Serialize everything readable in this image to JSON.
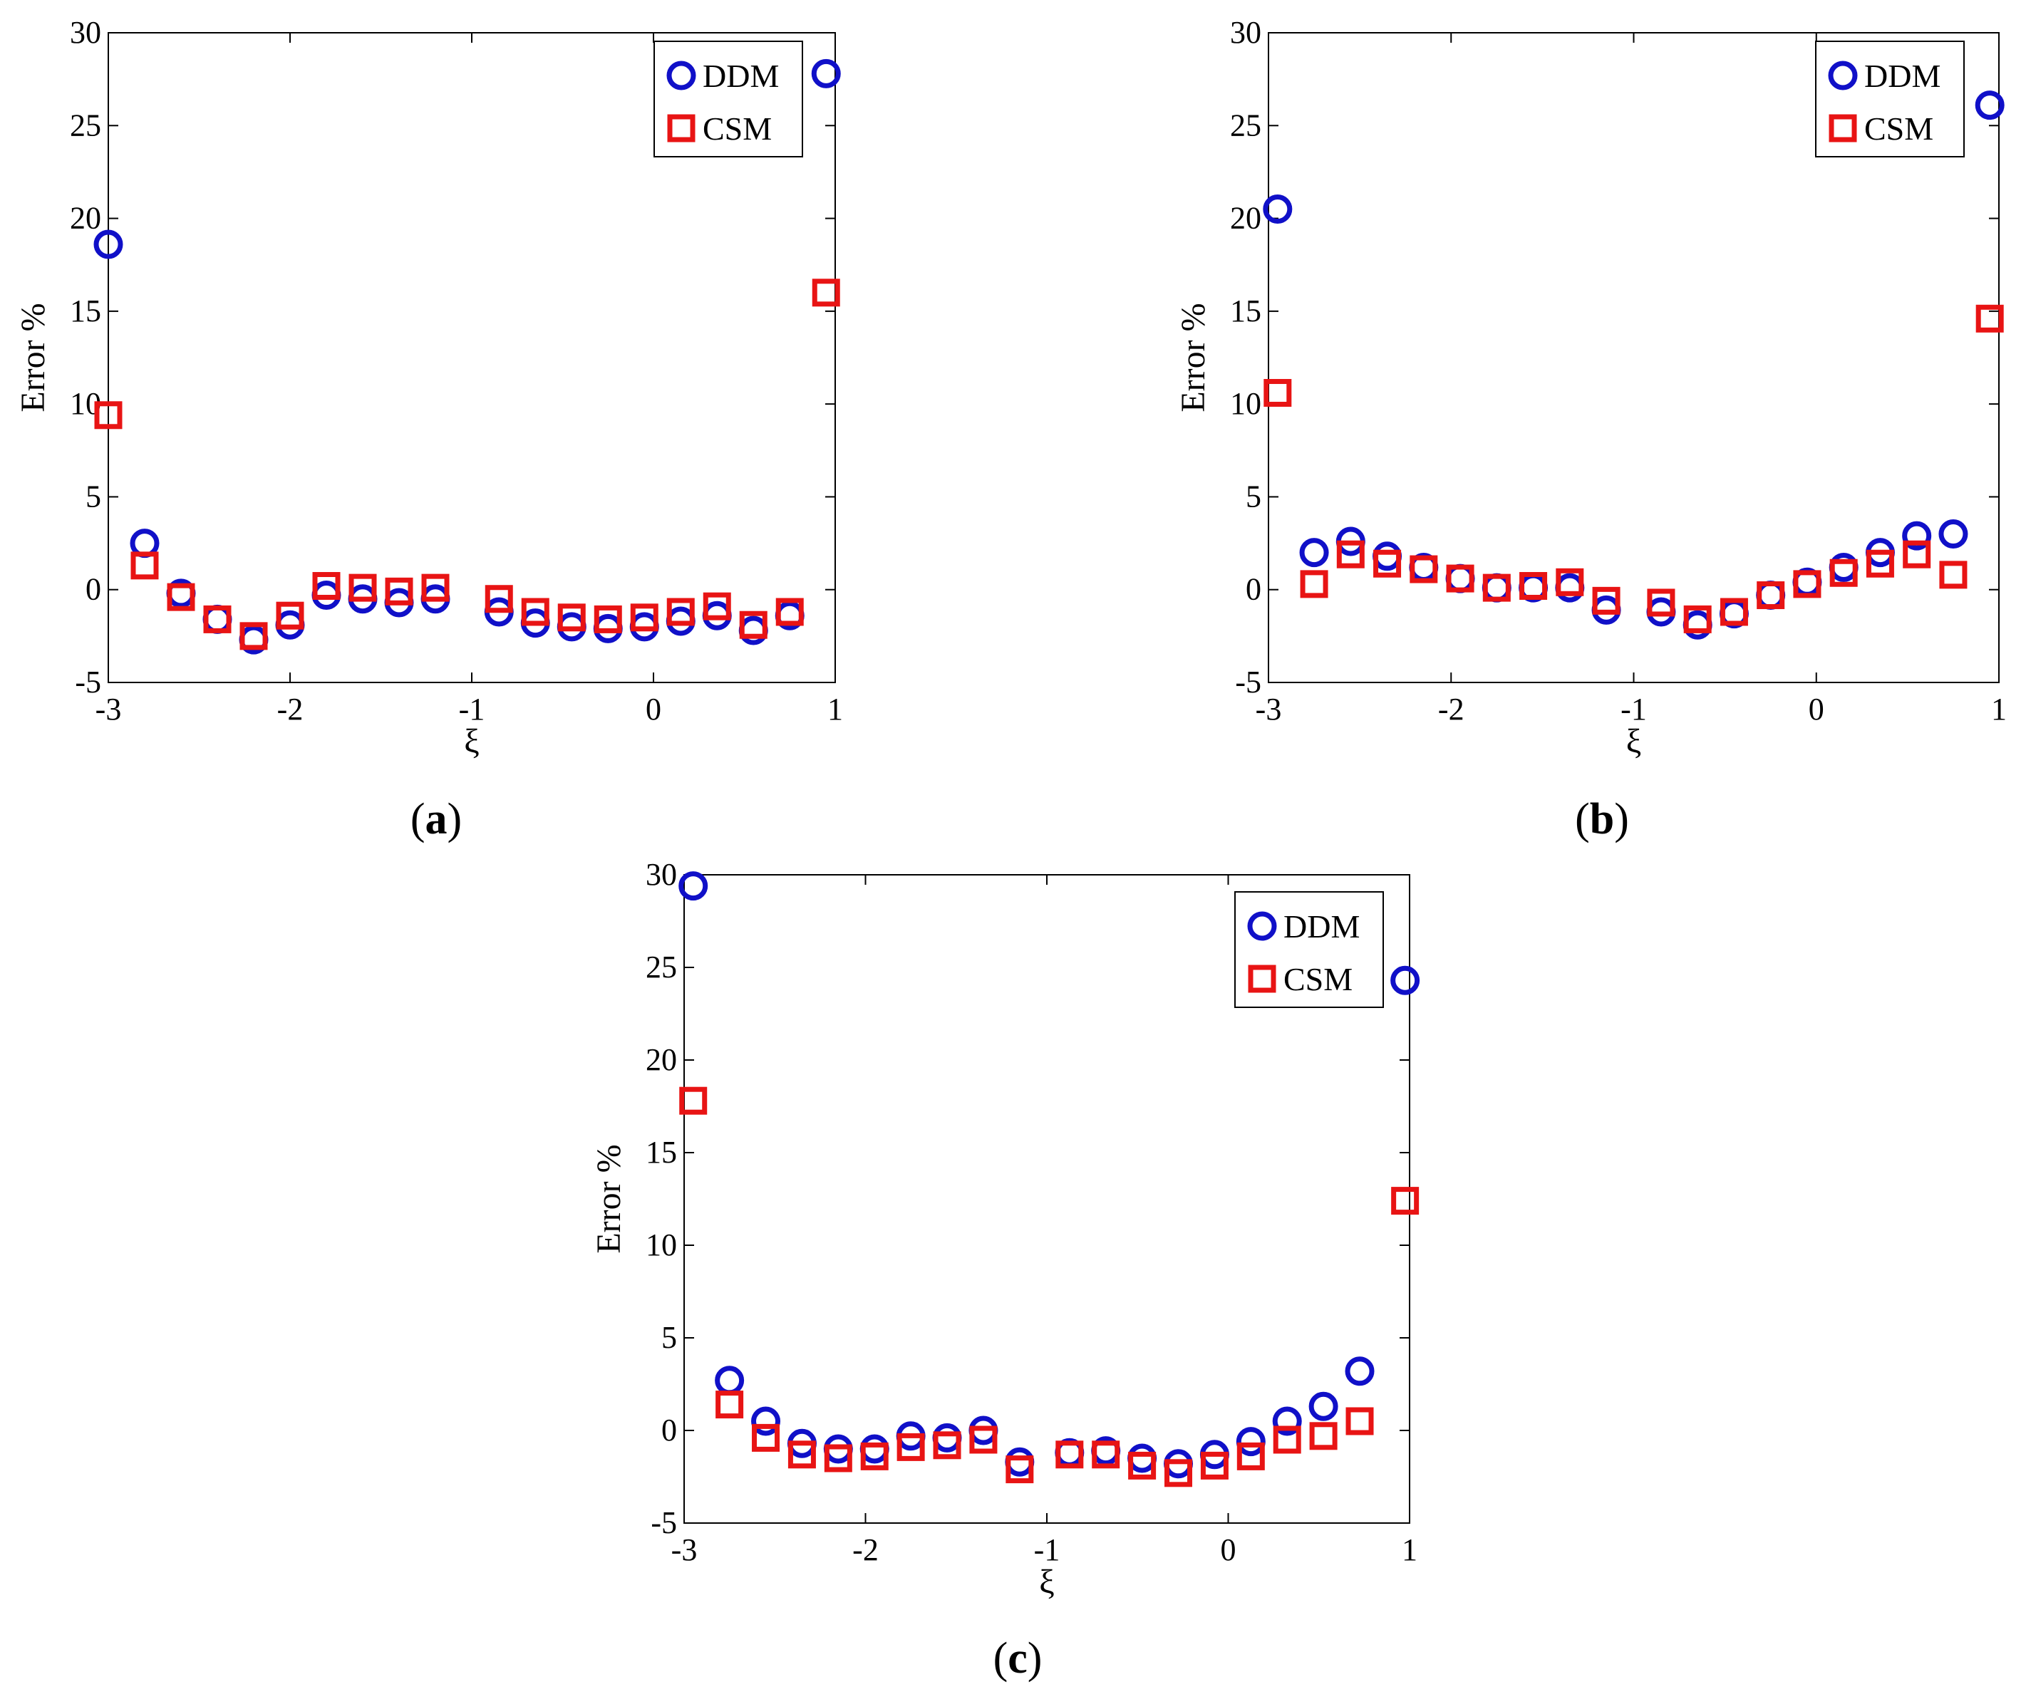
{
  "colors": {
    "DDM": "#1010c8",
    "CSM": "#e81414"
  },
  "chart_data": [
    {
      "type": "scatter",
      "label": "a",
      "xlabel": "ξ",
      "ylabel": "Error %",
      "xlim": [
        -3,
        1
      ],
      "ylim": [
        -5,
        30
      ],
      "xticks": [
        "-3",
        "-2",
        "-1",
        "0",
        "1"
      ],
      "yticks": [
        "-5",
        "0",
        "5",
        "10",
        "15",
        "20",
        "25",
        "30"
      ],
      "legend": "top-right",
      "series": [
        {
          "name": "DDM",
          "marker": "circle",
          "x": [
            -3.0,
            -2.8,
            -2.6,
            -2.4,
            -2.2,
            -2.0,
            -1.8,
            -1.6,
            -1.4,
            -1.2,
            -0.85,
            -0.65,
            -0.45,
            -0.25,
            -0.05,
            0.15,
            0.35,
            0.55,
            0.75,
            0.95
          ],
          "y": [
            18.6,
            2.5,
            -0.2,
            -1.6,
            -2.7,
            -1.9,
            -0.3,
            -0.5,
            -0.7,
            -0.5,
            -1.2,
            -1.8,
            -2.0,
            -2.1,
            -2.0,
            -1.7,
            -1.4,
            -2.2,
            -1.4,
            27.8
          ]
        },
        {
          "name": "CSM",
          "marker": "square",
          "x": [
            -3.0,
            -2.8,
            -2.6,
            -2.4,
            -2.2,
            -2.0,
            -1.8,
            -1.6,
            -1.4,
            -1.2,
            -0.85,
            -0.65,
            -0.45,
            -0.25,
            -0.05,
            0.15,
            0.35,
            0.55,
            0.75,
            0.95
          ],
          "y": [
            9.4,
            1.3,
            -0.4,
            -1.6,
            -2.5,
            -1.4,
            0.2,
            0.1,
            -0.1,
            0.1,
            -0.5,
            -1.2,
            -1.5,
            -1.6,
            -1.5,
            -1.2,
            -0.9,
            -1.9,
            -1.2,
            16.0
          ]
        }
      ]
    },
    {
      "type": "scatter",
      "label": "b",
      "xlabel": "ξ",
      "ylabel": "Error %",
      "xlim": [
        -3,
        1
      ],
      "ylim": [
        -5,
        30
      ],
      "xticks": [
        "-3",
        "-2",
        "-1",
        "0",
        "1"
      ],
      "yticks": [
        "-5",
        "0",
        "5",
        "10",
        "15",
        "20",
        "25",
        "30"
      ],
      "legend": "top-right",
      "series": [
        {
          "name": "DDM",
          "marker": "circle",
          "x": [
            -2.95,
            -2.75,
            -2.55,
            -2.35,
            -2.15,
            -1.95,
            -1.75,
            -1.55,
            -1.35,
            -1.15,
            -0.85,
            -0.65,
            -0.45,
            -0.25,
            -0.05,
            0.15,
            0.35,
            0.55,
            0.75,
            0.95
          ],
          "y": [
            20.5,
            2.0,
            2.6,
            1.8,
            1.2,
            0.6,
            0.1,
            0.1,
            0.1,
            -1.1,
            -1.2,
            -1.9,
            -1.3,
            -0.3,
            0.4,
            1.2,
            2.0,
            2.9,
            3.0,
            26.1
          ]
        },
        {
          "name": "CSM",
          "marker": "square",
          "x": [
            -2.95,
            -2.75,
            -2.55,
            -2.35,
            -2.15,
            -1.95,
            -1.75,
            -1.55,
            -1.35,
            -1.15,
            -0.85,
            -0.65,
            -0.45,
            -0.25,
            -0.05,
            0.15,
            0.35,
            0.55,
            0.75,
            0.95
          ],
          "y": [
            10.6,
            0.3,
            1.9,
            1.4,
            1.1,
            0.6,
            0.1,
            0.2,
            0.4,
            -0.6,
            -0.7,
            -1.6,
            -1.2,
            -0.3,
            0.3,
            0.9,
            1.4,
            1.9,
            0.8,
            14.6
          ]
        }
      ]
    },
    {
      "type": "scatter",
      "label": "c",
      "xlabel": "ξ",
      "ylabel": "Error %",
      "xlim": [
        -3,
        1
      ],
      "ylim": [
        -5,
        30
      ],
      "xticks": [
        "-3",
        "-2",
        "-1",
        "0",
        "1"
      ],
      "yticks": [
        "-5",
        "0",
        "5",
        "10",
        "15",
        "20",
        "25",
        "30"
      ],
      "legend": "top-right",
      "series": [
        {
          "name": "DDM",
          "marker": "circle",
          "x": [
            -2.95,
            -2.75,
            -2.55,
            -2.35,
            -2.15,
            -1.95,
            -1.75,
            -1.55,
            -1.35,
            -1.15,
            -0.875,
            -0.675,
            -0.475,
            -0.275,
            -0.075,
            0.125,
            0.325,
            0.525,
            0.725,
            0.975
          ],
          "y": [
            29.4,
            2.7,
            0.5,
            -0.7,
            -1.0,
            -1.0,
            -0.3,
            -0.4,
            0.0,
            -1.7,
            -1.2,
            -1.1,
            -1.5,
            -1.8,
            -1.3,
            -0.6,
            0.5,
            1.3,
            3.2,
            24.3
          ]
        },
        {
          "name": "CSM",
          "marker": "square",
          "x": [
            -2.95,
            -2.75,
            -2.55,
            -2.35,
            -2.15,
            -1.95,
            -1.75,
            -1.55,
            -1.35,
            -1.15,
            -0.875,
            -0.675,
            -0.475,
            -0.275,
            -0.075,
            0.125,
            0.325,
            0.525,
            0.725,
            0.975
          ],
          "y": [
            17.8,
            1.4,
            -0.4,
            -1.3,
            -1.5,
            -1.4,
            -0.9,
            -0.8,
            -0.5,
            -2.1,
            -1.3,
            -1.3,
            -1.9,
            -2.3,
            -1.9,
            -1.4,
            -0.5,
            -0.3,
            0.5,
            12.4
          ]
        }
      ]
    }
  ]
}
